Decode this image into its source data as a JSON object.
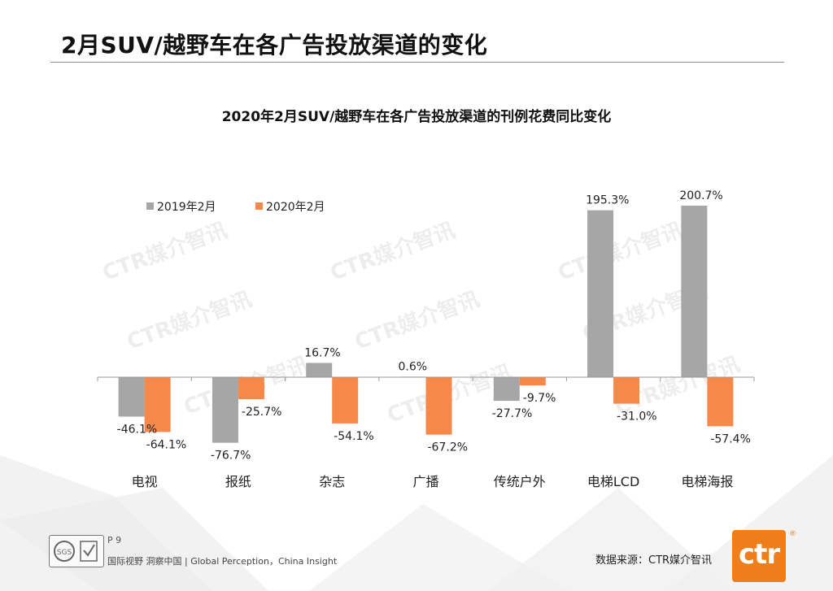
{
  "page": {
    "title": "2月SUV/越野车在各广告投放渠道的变化",
    "page_number": "P 9",
    "slogan": "国际视野  洞察中国 |  Global Perception，China Insight",
    "source": "数据来源：CTR媒介智讯",
    "logo_text": "ctr",
    "watermark": "CTR媒介智讯"
  },
  "colors": {
    "series_2019": "#a6a6a6",
    "series_2020": "#f6894a",
    "axis": "#999999",
    "logo": "#ef7d1a"
  },
  "chart_data": {
    "type": "bar",
    "title": "2020年2月SUV/越野车在各广告投放渠道的刊例花费同比变化",
    "categories": [
      "电视",
      "报纸",
      "杂志",
      "广播",
      "传统户外",
      "电梯LCD",
      "电梯海报"
    ],
    "series": [
      {
        "name": "2019年2月",
        "values": [
          -46.1,
          -76.7,
          16.7,
          0.6,
          -27.7,
          195.3,
          200.7
        ],
        "labels": [
          "-46.1%",
          "-76.7%",
          "16.7%",
          "0.6%",
          "-27.7%",
          "195.3%",
          "200.7%"
        ]
      },
      {
        "name": "2020年2月",
        "values": [
          -64.1,
          -25.7,
          -54.1,
          -67.2,
          -9.7,
          -31.0,
          -57.4
        ],
        "labels": [
          "-64.1%",
          "-25.7%",
          "-54.1%",
          "-67.2%",
          "-9.7%",
          "-31.0%",
          "-57.4%"
        ]
      }
    ],
    "legend_position": "top-left",
    "grid": false
  }
}
